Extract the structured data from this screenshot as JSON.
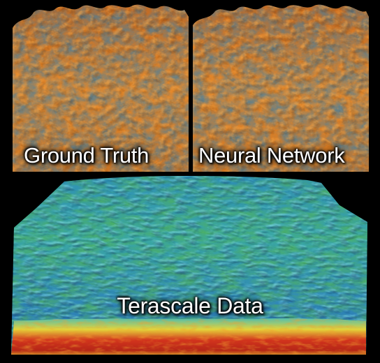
{
  "panels": {
    "ground_truth": {
      "label": "Ground Truth"
    },
    "neural_network": {
      "label": "Neural Network"
    },
    "terascale": {
      "label": "Terascale Data"
    }
  },
  "colors": {
    "background": "#000000",
    "turbulence_orange": "#e0822a",
    "turbulence_blue": "#3f86b5",
    "terascale_cyan": "#3cc4d8",
    "terascale_green": "#3fa85a",
    "terascale_red": "#d4311f"
  }
}
